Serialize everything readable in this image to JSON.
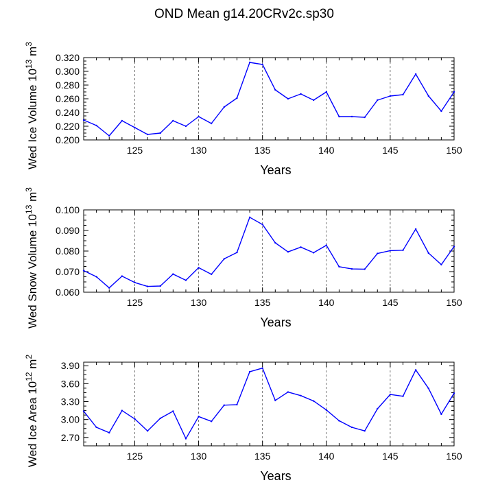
{
  "title": "OND Mean g14.20CRv2c.sp30",
  "chart_data": [
    {
      "type": "line",
      "ylabel": "Wed Ice Volume",
      "ylabel_unit": "10",
      "ylabel_exp": "13",
      "ylabel_tail": " m",
      "ylabel_tail_exp": "3",
      "xlabel": "Years",
      "xlim": [
        121,
        150
      ],
      "ylim": [
        0.2,
        0.32
      ],
      "yticks": [
        "0.200",
        "0.220",
        "0.240",
        "0.260",
        "0.280",
        "0.300",
        "0.320"
      ],
      "xticks": [
        "125",
        "130",
        "135",
        "140",
        "145",
        "150"
      ],
      "line_color": "#0000ff",
      "x": [
        121,
        122,
        123,
        124,
        125,
        126,
        127,
        128,
        129,
        130,
        131,
        132,
        133,
        134,
        135,
        136,
        137,
        138,
        139,
        140,
        141,
        142,
        143,
        144,
        145,
        146,
        147,
        148,
        149,
        150
      ],
      "values": [
        0.229,
        0.221,
        0.206,
        0.228,
        0.218,
        0.208,
        0.21,
        0.228,
        0.22,
        0.234,
        0.224,
        0.248,
        0.261,
        0.313,
        0.31,
        0.273,
        0.26,
        0.267,
        0.258,
        0.27,
        0.234,
        0.234,
        0.233,
        0.258,
        0.264,
        0.266,
        0.296,
        0.264,
        0.242,
        0.27
      ]
    },
    {
      "type": "line",
      "ylabel": "Wed Snow Volume",
      "ylabel_unit": "10",
      "ylabel_exp": "13",
      "ylabel_tail": " m",
      "ylabel_tail_exp": "3",
      "xlabel": "Years",
      "xlim": [
        121,
        150
      ],
      "ylim": [
        0.06,
        0.1
      ],
      "yticks": [
        "0.060",
        "0.070",
        "0.080",
        "0.090",
        "0.100"
      ],
      "xticks": [
        "125",
        "130",
        "135",
        "140",
        "145",
        "150"
      ],
      "line_color": "#0000ff",
      "x": [
        121,
        122,
        123,
        124,
        125,
        126,
        127,
        128,
        129,
        130,
        131,
        132,
        133,
        134,
        135,
        136,
        137,
        138,
        139,
        140,
        141,
        142,
        143,
        144,
        145,
        146,
        147,
        148,
        149,
        150
      ],
      "values": [
        0.0705,
        0.0675,
        0.0621,
        0.0678,
        0.0647,
        0.0628,
        0.063,
        0.0688,
        0.0658,
        0.0719,
        0.0687,
        0.0762,
        0.0793,
        0.0964,
        0.0929,
        0.084,
        0.0796,
        0.0819,
        0.0792,
        0.0828,
        0.0724,
        0.0713,
        0.0712,
        0.0788,
        0.0802,
        0.0804,
        0.0907,
        0.079,
        0.0734,
        0.0822
      ]
    },
    {
      "type": "line",
      "ylabel": "Wed Ice Area",
      "ylabel_unit": "10",
      "ylabel_exp": "12",
      "ylabel_tail": " m",
      "ylabel_tail_exp": "2",
      "xlabel": "Years",
      "xlim": [
        121,
        150
      ],
      "ylim": [
        2.56,
        3.96
      ],
      "yticks": [
        "2.70",
        "3.00",
        "3.30",
        "3.60",
        "3.90"
      ],
      "ytick_values": [
        2.7,
        3.0,
        3.3,
        3.6,
        3.9
      ],
      "xticks": [
        "125",
        "130",
        "135",
        "140",
        "145",
        "150"
      ],
      "line_color": "#0000ff",
      "x": [
        121,
        122,
        123,
        124,
        125,
        126,
        127,
        128,
        129,
        130,
        131,
        132,
        133,
        134,
        135,
        136,
        137,
        138,
        139,
        140,
        141,
        142,
        143,
        144,
        145,
        146,
        147,
        148,
        149,
        150
      ],
      "values": [
        3.14,
        2.87,
        2.78,
        3.15,
        3.01,
        2.81,
        3.02,
        3.14,
        2.68,
        3.05,
        2.97,
        3.24,
        3.25,
        3.8,
        3.86,
        3.32,
        3.46,
        3.4,
        3.31,
        3.16,
        2.98,
        2.87,
        2.81,
        3.18,
        3.42,
        3.39,
        3.83,
        3.52,
        3.09,
        3.44
      ]
    }
  ]
}
